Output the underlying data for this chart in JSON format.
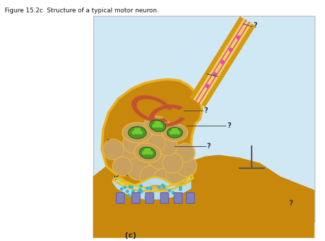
{
  "title": "Figure 15.2c  Structure of a typical motor neuron.",
  "subtitle": "(c)",
  "bg_color": "#ffffff",
  "fig_bg": "#d0e8f4",
  "muscle_color": "#c8880c",
  "muscle_light": "#d4a030",
  "bulb_color": "#c8880c",
  "bulb_border": "#e8b020",
  "bulb_inner": "#b87a0a",
  "axon_gold": "#d49a10",
  "axon_light": "#f0d060",
  "axon_pink1": "#e050a0",
  "axon_pink2": "#d04080",
  "er_color": "#c05030",
  "er_color2": "#d86040",
  "vesicle_fill": "#c8a060",
  "vesicle_border": "#e8b840",
  "mito_outer": "#c8a060",
  "mito_green": "#4a9820",
  "mito_dot": "#70cc30",
  "cleft_color": "#b8ddf0",
  "cleft_border": "#e8c020",
  "receptor_color": "#8080c0",
  "receptor_border": "#6060a0",
  "dot_color": "#40b8c8",
  "arrow_color": "#222222",
  "q_color": "#333333",
  "tbar_color": "#555555"
}
